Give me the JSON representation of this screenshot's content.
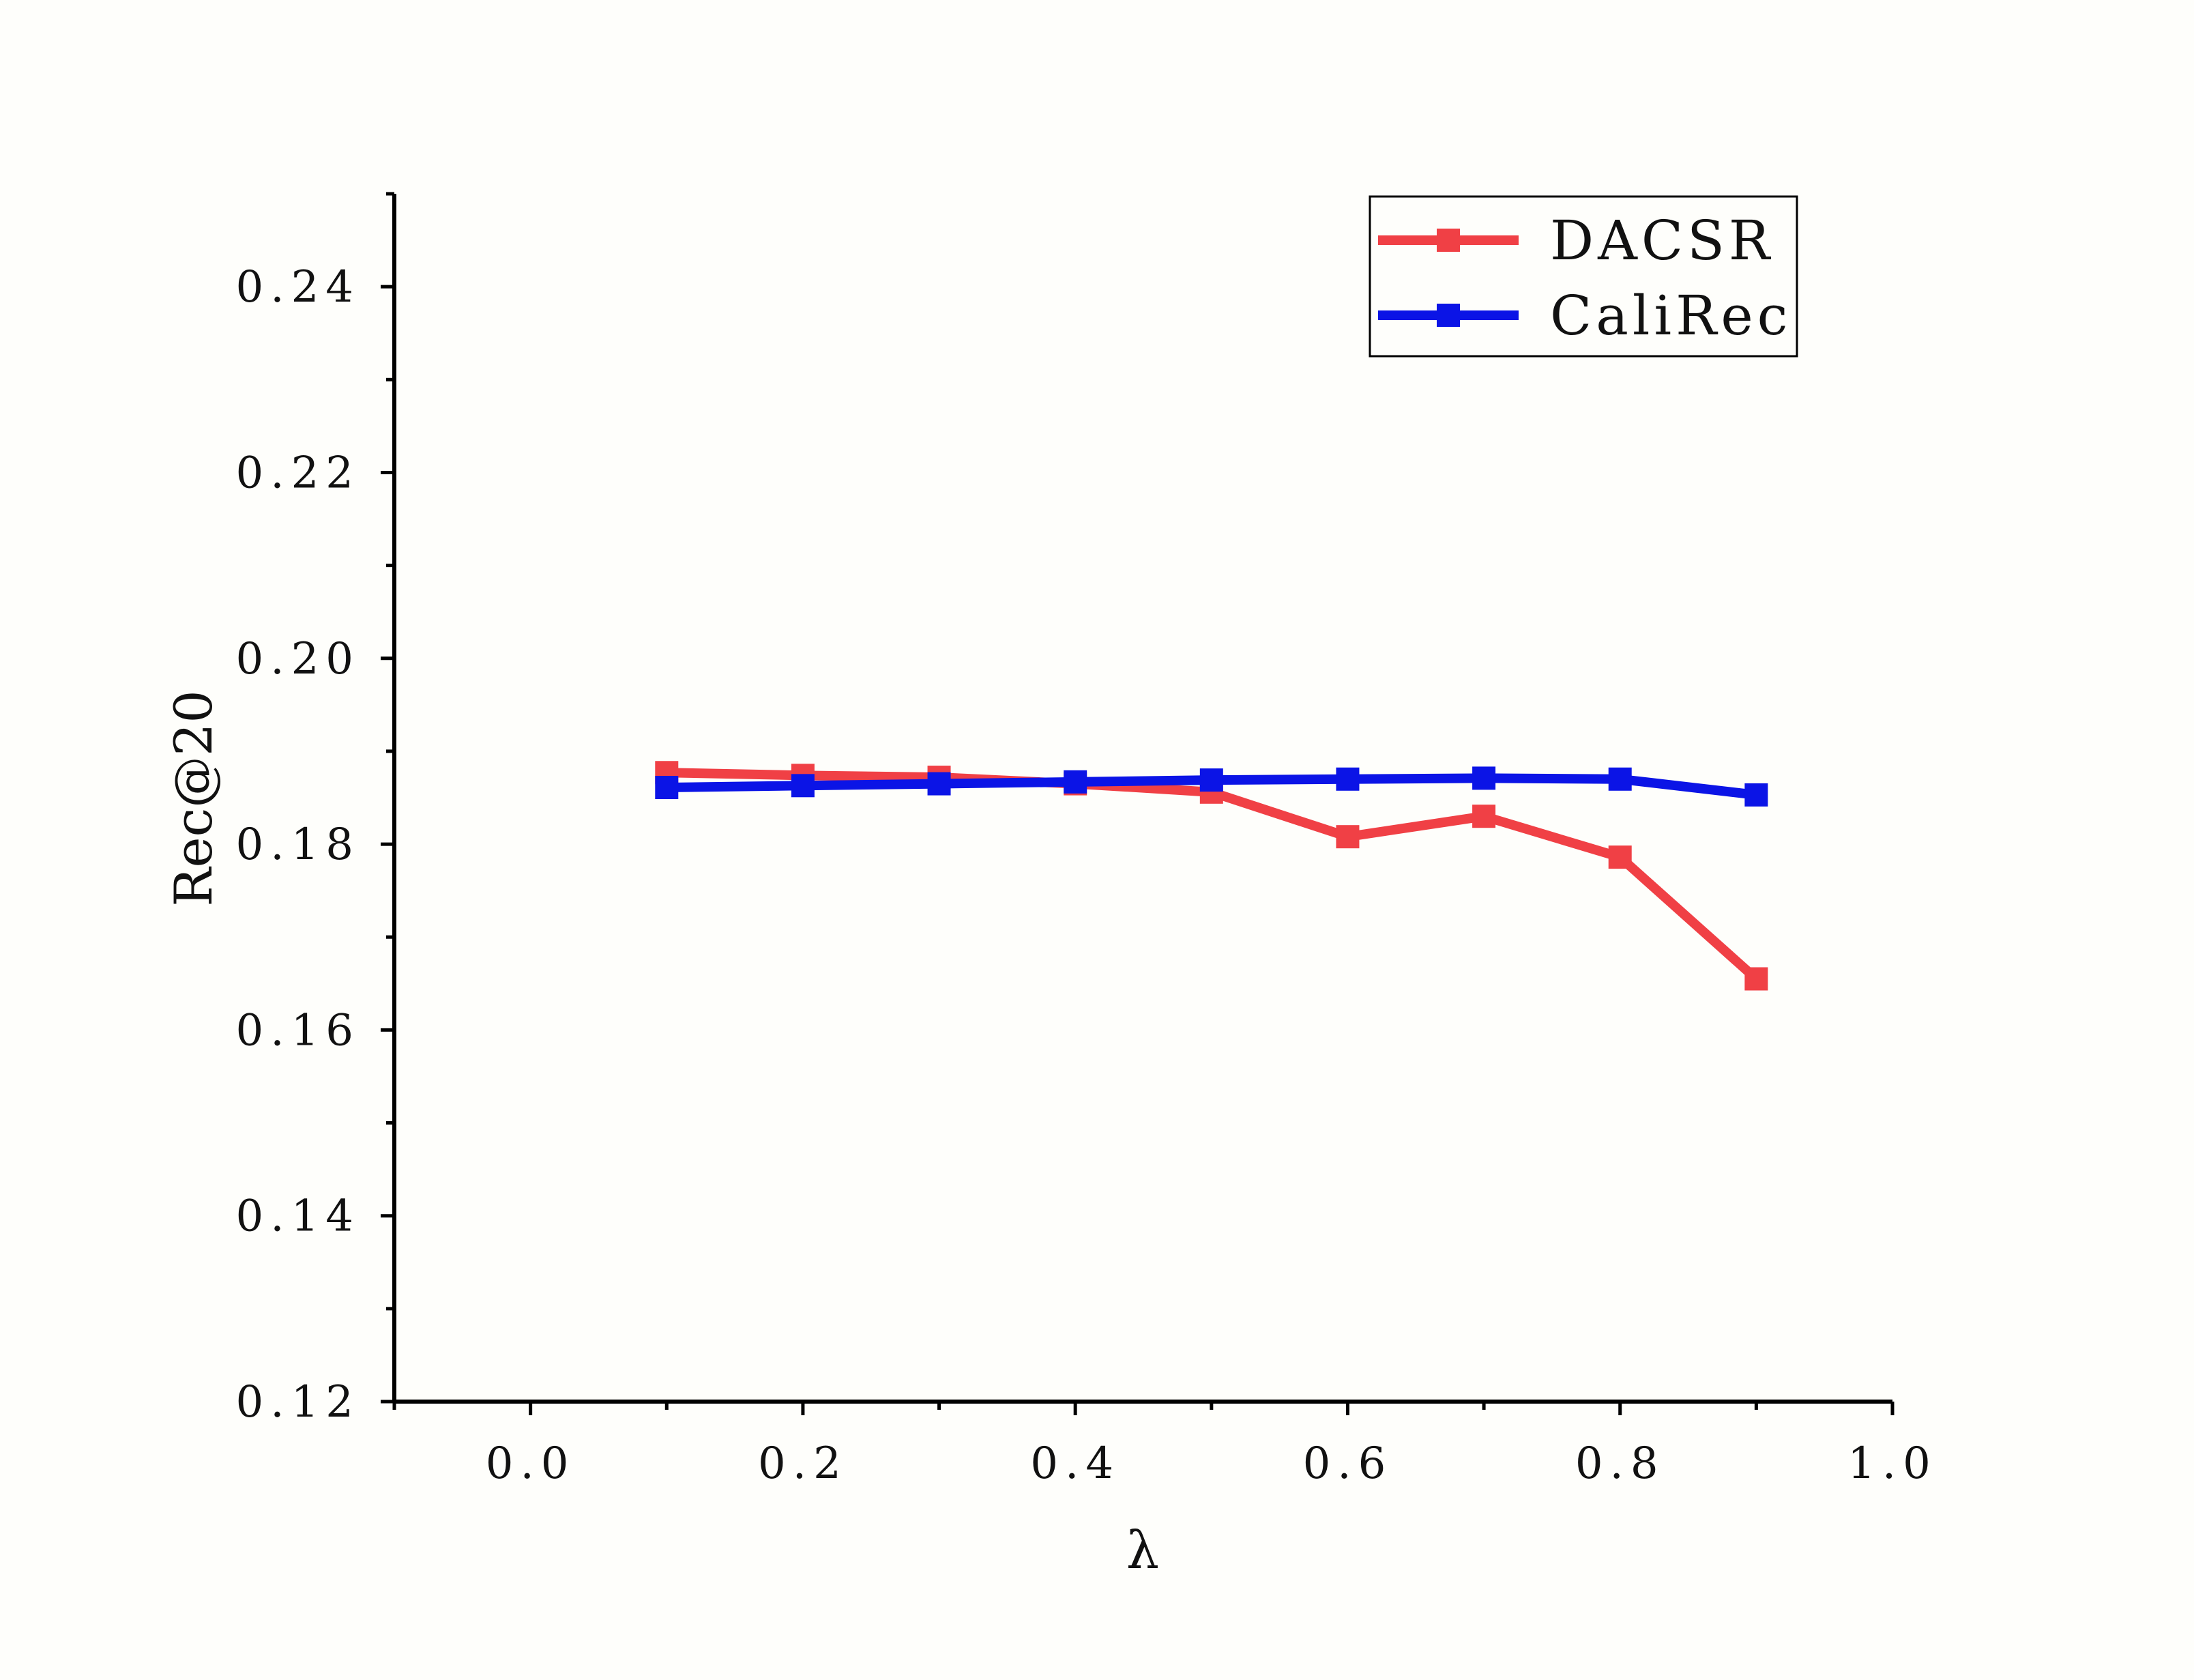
{
  "chart_data": {
    "type": "line",
    "title": "",
    "xlabel": "λ",
    "ylabel": "Rec@20",
    "xlim": [
      -0.1,
      1.0
    ],
    "ylim": [
      0.12,
      0.25
    ],
    "x_ticks": [
      0.0,
      0.2,
      0.4,
      0.6,
      0.8,
      1.0
    ],
    "x_tick_labels": [
      "0.0",
      "0.2",
      "0.4",
      "0.6",
      "0.8",
      "1.0"
    ],
    "y_ticks": [
      0.12,
      0.14,
      0.16,
      0.18,
      0.2,
      0.22,
      0.24
    ],
    "y_tick_labels": [
      "0.12",
      "0.14",
      "0.16",
      "0.18",
      "0.20",
      "0.22",
      "0.24"
    ],
    "grid": false,
    "legend_position": "top-right",
    "x": [
      0.1,
      0.2,
      0.3,
      0.4,
      0.5,
      0.6,
      0.7,
      0.8,
      0.9
    ],
    "series": [
      {
        "name": "DACSR",
        "color": "#f04045",
        "marker": "square",
        "values": [
          0.1877,
          0.1874,
          0.1872,
          0.1865,
          0.1856,
          0.1808,
          0.183,
          0.1786,
          0.1655
        ]
      },
      {
        "name": "CaliRec",
        "color": "#0b14e6",
        "marker": "square",
        "values": [
          0.1861,
          0.1863,
          0.1865,
          0.1867,
          0.1869,
          0.187,
          0.1871,
          0.187,
          0.1853
        ]
      }
    ]
  }
}
